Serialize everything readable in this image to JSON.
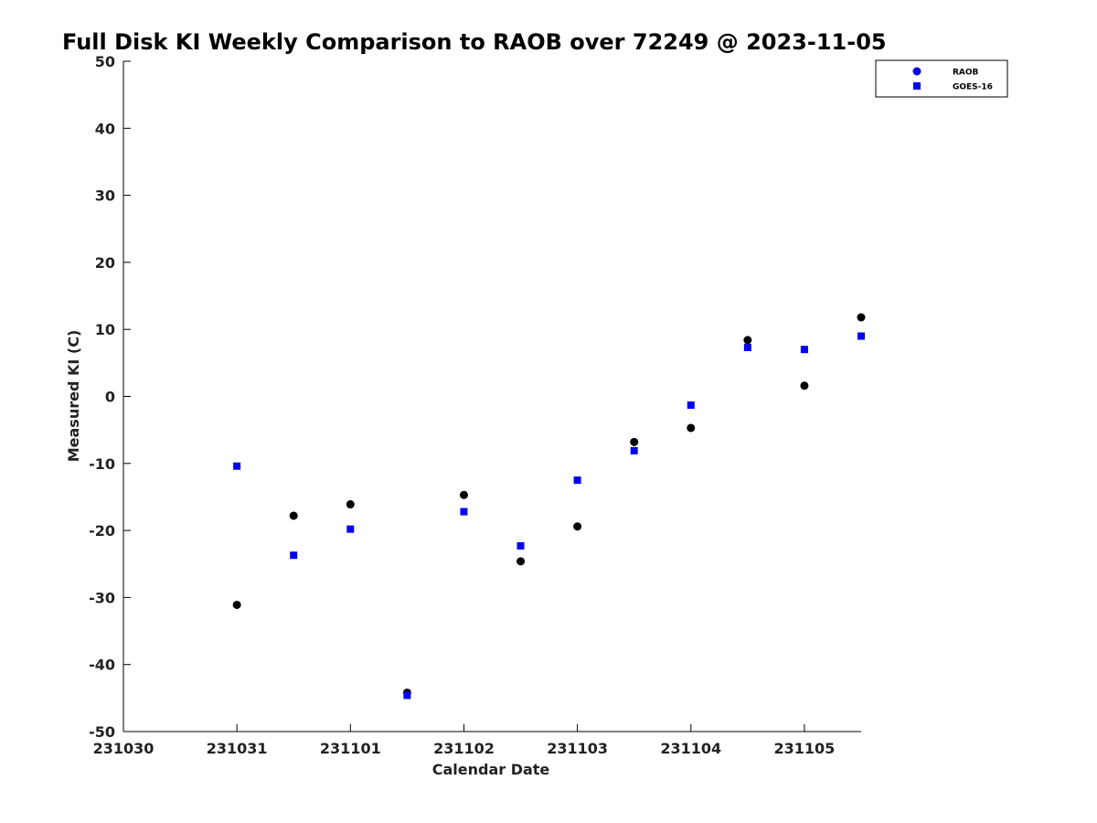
{
  "chart_data": {
    "type": "scatter",
    "title": "Full Disk KI Weekly Comparison to RAOB over 72249 @ 2023-11-05",
    "xlabel": "Calendar Date",
    "ylabel": "Measured KI (C)",
    "xlim": [
      "2023-10-30",
      "2023-11-05 12:00"
    ],
    "ylim": [
      -50,
      50
    ],
    "x_ticks": [
      {
        "value": "2023-10-30",
        "label": "231030"
      },
      {
        "value": "2023-10-31",
        "label": "231031"
      },
      {
        "value": "2023-11-01",
        "label": "231101"
      },
      {
        "value": "2023-11-02",
        "label": "231102"
      },
      {
        "value": "2023-11-03",
        "label": "231103"
      },
      {
        "value": "2023-11-04",
        "label": "231104"
      },
      {
        "value": "2023-11-05",
        "label": "231105"
      }
    ],
    "y_ticks": [
      -50,
      -40,
      -30,
      -20,
      -10,
      0,
      10,
      20,
      30,
      40,
      50
    ],
    "grid": false,
    "legend_position": "top-right",
    "x": [
      "2023-10-31 00:00",
      "2023-10-31 12:00",
      "2023-11-01 00:00",
      "2023-11-01 12:00",
      "2023-11-02 00:00",
      "2023-11-02 12:00",
      "2023-11-03 00:00",
      "2023-11-03 12:00",
      "2023-11-04 00:00",
      "2023-11-04 12:00",
      "2023-11-05 00:00",
      "2023-11-05 12:00"
    ],
    "series": [
      {
        "name": "RAOB",
        "marker": "circle",
        "color": "#000000",
        "legend_color": "#0000ee",
        "values": [
          -31.1,
          -17.8,
          -16.1,
          -44.2,
          -14.7,
          -24.6,
          -19.4,
          -6.8,
          -4.7,
          8.4,
          1.6,
          11.8
        ]
      },
      {
        "name": "GOES-16",
        "marker": "square",
        "color": "#0000ee",
        "legend_color": "#0000ee",
        "values": [
          -10.4,
          -23.7,
          -19.8,
          -44.6,
          -17.2,
          -22.3,
          -12.5,
          -8.1,
          -1.3,
          7.3,
          7.0,
          9.0
        ]
      }
    ]
  }
}
